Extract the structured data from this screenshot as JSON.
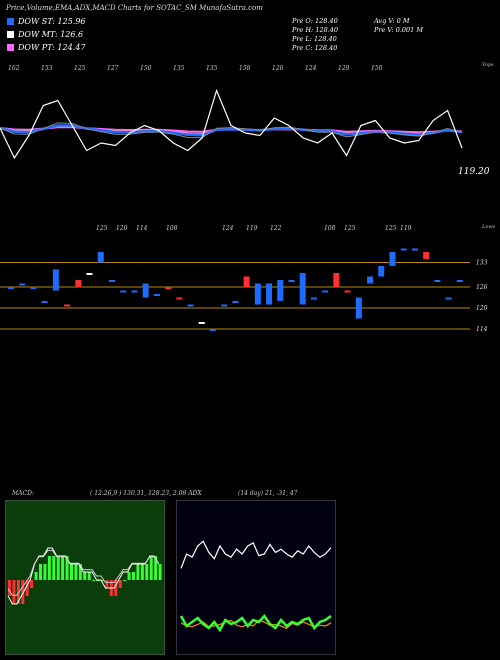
{
  "header": {
    "title": "Price,Volume,EMA,ADX,MACD Charts for SOTAC_SM MunafaSutra.com"
  },
  "legend": [
    {
      "label": "DOW ST: 125.96",
      "color": "#1e6bff"
    },
    {
      "label": "DOW MT: 126.6",
      "color": "#ffffff"
    },
    {
      "label": "DOW PT: 124.47",
      "color": "#ff66ff"
    }
  ],
  "quote": {
    "prev_open": "Pre O: 128.40",
    "prev_high": "Pre H: 128.40",
    "prev_low": "Pre L: 128.40",
    "prev_close": "Pre C: 128.40",
    "avg_vol": "Avg V: 0 M",
    "prev_vol": "Pre V: 0.001 M"
  },
  "panels": {
    "top_label": "Tops",
    "low_label": "Lows",
    "ema_last": "119.20",
    "macd_label": "MACD:",
    "macd_values": "( 12.26,9 ) 130.31, 128.23, 2.08 ADX",
    "adx_values": "(14 day) 21, -31, 47"
  },
  "chart_data": [
    {
      "type": "line",
      "title": "",
      "tops_labels": [
        "162",
        "153",
        "125",
        "127",
        "150",
        "135",
        "135",
        "158",
        "126",
        "124",
        "129",
        "150"
      ],
      "series": [
        {
          "name": "",
          "color": "#ffffff",
          "values": [
            130,
            118,
            127,
            139,
            141,
            131,
            121,
            124,
            123,
            128,
            131,
            129,
            124,
            121,
            126,
            145,
            131,
            128,
            127,
            134,
            131,
            126,
            124,
            128,
            119,
            131,
            133,
            126,
            124,
            125,
            133,
            137,
            122
          ]
        }
      ],
      "ema_color": "#1e6bff",
      "last_value": 119.2
    },
    {
      "type": "bar",
      "title": "",
      "lows_labels": [
        "125",
        "120",
        "114",
        "108",
        "124",
        "119",
        "122",
        "108",
        "125",
        "125",
        "119"
      ],
      "levels": [
        133,
        126,
        120,
        114
      ],
      "candles": [
        {
          "o": 126,
          "c": 126,
          "color": "#1e6bff"
        },
        {
          "o": 127,
          "c": 127,
          "color": "#1e6bff"
        },
        {
          "o": 126,
          "c": 126,
          "color": "#1e6bff"
        },
        {
          "o": 122,
          "c": 122,
          "color": "#1e6bff"
        },
        {
          "o": 125,
          "c": 131,
          "color": "#1e6bff"
        },
        {
          "o": 121,
          "c": 121,
          "color": "#ff3030"
        },
        {
          "o": 126,
          "c": 128,
          "color": "#ff3030"
        },
        {
          "o": 130,
          "c": 130,
          "color": "#ffffff"
        },
        {
          "o": 133,
          "c": 136,
          "color": "#1e6bff"
        },
        {
          "o": 128,
          "c": 128,
          "color": "#1e6bff"
        },
        {
          "o": 125,
          "c": 125,
          "color": "#1e6bff"
        },
        {
          "o": 125,
          "c": 125,
          "color": "#1e6bff"
        },
        {
          "o": 123,
          "c": 127,
          "color": "#1e6bff"
        },
        {
          "o": 124,
          "c": 124,
          "color": "#1e6bff"
        },
        {
          "o": 126,
          "c": 126,
          "color": "#ff3030"
        },
        {
          "o": 123,
          "c": 123,
          "color": "#ff3030"
        },
        {
          "o": 121,
          "c": 121,
          "color": "#1e6bff"
        },
        {
          "o": 116,
          "c": 116,
          "color": "#ffffff"
        },
        {
          "o": 114,
          "c": 114,
          "color": "#1e6bff"
        },
        {
          "o": 121,
          "c": 121,
          "color": "#1e6bff"
        },
        {
          "o": 122,
          "c": 122,
          "color": "#1e6bff"
        },
        {
          "o": 126,
          "c": 129,
          "color": "#ff3030"
        },
        {
          "o": 121,
          "c": 127,
          "color": "#1e6bff"
        },
        {
          "o": 121,
          "c": 127,
          "color": "#1e6bff"
        },
        {
          "o": 122,
          "c": 128,
          "color": "#1e6bff"
        },
        {
          "o": 128,
          "c": 128,
          "color": "#1e6bff"
        },
        {
          "o": 121,
          "c": 130,
          "color": "#1e6bff"
        },
        {
          "o": 123,
          "c": 123,
          "color": "#1e6bff"
        },
        {
          "o": 125,
          "c": 125,
          "color": "#1e6bff"
        },
        {
          "o": 126,
          "c": 130,
          "color": "#ff3030"
        },
        {
          "o": 125,
          "c": 125,
          "color": "#ff3030"
        },
        {
          "o": 117,
          "c": 123,
          "color": "#1e6bff"
        },
        {
          "o": 127,
          "c": 129,
          "color": "#1e6bff"
        },
        {
          "o": 129,
          "c": 132,
          "color": "#1e6bff"
        },
        {
          "o": 132,
          "c": 136,
          "color": "#1e6bff"
        },
        {
          "o": 137,
          "c": 137,
          "color": "#1e6bff"
        },
        {
          "o": 137,
          "c": 137,
          "color": "#1e6bff"
        },
        {
          "o": 134,
          "c": 136,
          "color": "#ff3030"
        },
        {
          "o": 128,
          "c": 128,
          "color": "#1e6bff"
        },
        {
          "o": 123,
          "c": 123,
          "color": "#1e6bff"
        },
        {
          "o": 128,
          "c": 128,
          "color": "#1e6bff"
        }
      ]
    },
    {
      "type": "bar",
      "title": "",
      "histogram": [
        -2,
        -3,
        -3,
        -3,
        -2,
        -1,
        1,
        2,
        2,
        3,
        3,
        3,
        3,
        3,
        2,
        2,
        2,
        1,
        1,
        0,
        0,
        0,
        -1,
        -2,
        -2,
        -1,
        0,
        1,
        1,
        2,
        2,
        2,
        3,
        3,
        2
      ],
      "macd": [
        -2,
        -3,
        -3,
        -2,
        -1,
        0,
        2,
        3,
        3,
        4,
        4,
        3,
        3,
        3,
        2,
        2,
        2,
        1,
        1,
        1,
        0,
        0,
        -1,
        -1,
        -1,
        0,
        1,
        1,
        2,
        2,
        2,
        2,
        3,
        3,
        2
      ],
      "bg": "#0a3d0a"
    },
    {
      "type": "line",
      "title": "",
      "series": [
        {
          "name": "",
          "color": "#ffffff",
          "values": [
            21,
            30,
            28,
            35,
            38,
            31,
            27,
            35,
            30,
            28,
            33,
            30,
            35,
            37,
            29,
            30,
            36,
            31,
            33,
            30,
            28,
            32,
            30,
            35,
            31,
            28,
            30,
            34
          ]
        },
        {
          "name": "",
          "color": "#ff8c00",
          "values": [
            -31,
            -35,
            -36,
            -33,
            -30,
            -36,
            -35,
            -33,
            -30,
            -28,
            -34,
            -36,
            -33,
            -35,
            -28,
            -30,
            -34,
            -33,
            -35,
            -38,
            -32,
            -34,
            -30,
            -33,
            -36,
            -34,
            -35,
            -31
          ]
        },
        {
          "name": "",
          "color": "#33ff33",
          "values": [
            47,
            42,
            44,
            46,
            43,
            41,
            44,
            40,
            45,
            43,
            44,
            46,
            42,
            45,
            44,
            47,
            43,
            41,
            45,
            42,
            44,
            43,
            45,
            46,
            41,
            44,
            45,
            47
          ]
        }
      ],
      "bg": "#000010"
    }
  ]
}
